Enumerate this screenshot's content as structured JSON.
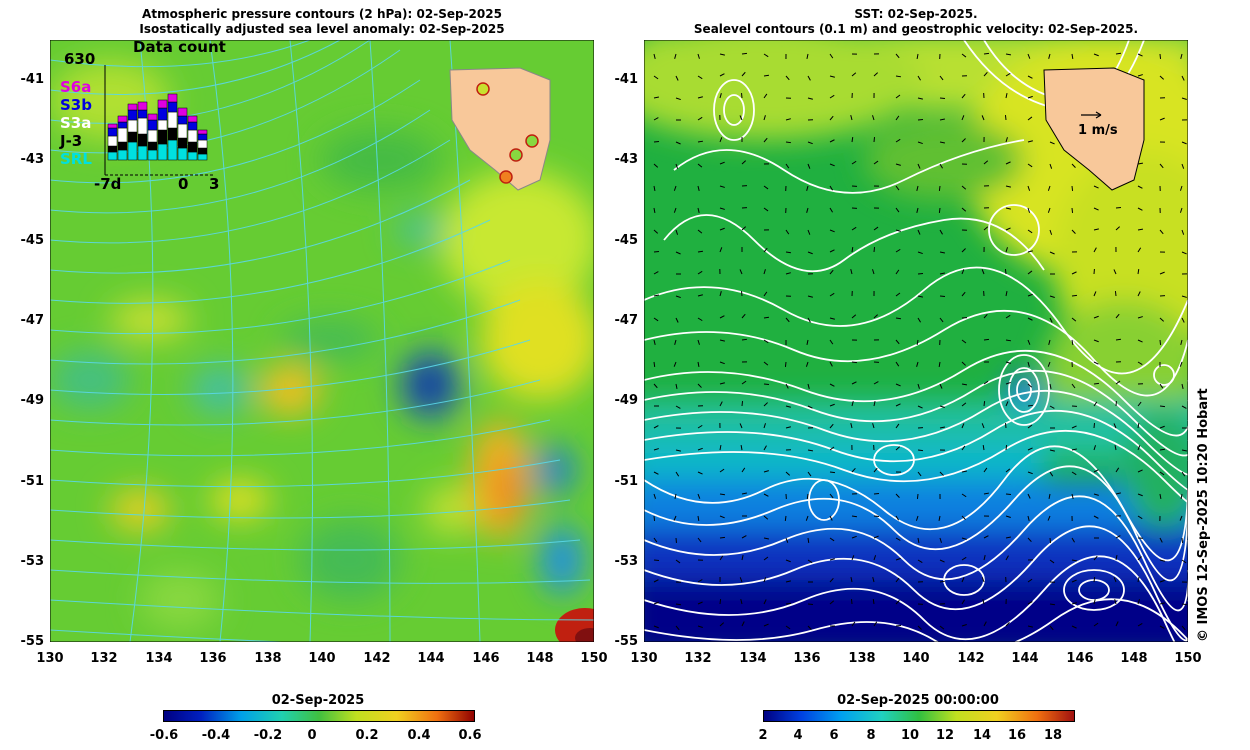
{
  "left_panel": {
    "title_line1": "Atmospheric pressure contours (2 hPa): 02-Sep-2025",
    "title_line2": "Isostatically adjusted sea level anomaly: 02-Sep-2025",
    "inset": {
      "title": "Data count",
      "max_label": "630",
      "legend": [
        {
          "label": "S6a",
          "color": "#e000e0"
        },
        {
          "label": "S3b",
          "color": "#0000e0"
        },
        {
          "label": "S3a",
          "color": "#ffffff"
        },
        {
          "label": "J-3",
          "color": "#000000"
        },
        {
          "label": "SRL",
          "color": "#00e0e0"
        }
      ],
      "x_labels": [
        "-7d",
        "0",
        "3"
      ]
    },
    "colorbar": {
      "title": "02-Sep-2025",
      "ticks": [
        "-0.6",
        "-0.4",
        "-0.2",
        "0",
        "0.2",
        "0.4",
        "0.6"
      ]
    }
  },
  "right_panel": {
    "title_line1": "SST: 02-Sep-2025.",
    "title_line2": "Sealevel contours (0.1 m) and geostrophic velocity: 02-Sep-2025.",
    "velocity_scale_label": "1 m/s",
    "colorbar": {
      "title": "02-Sep-2025 00:00:00",
      "ticks": [
        "2",
        "4",
        "6",
        "8",
        "10",
        "12",
        "14",
        "16",
        "18"
      ]
    },
    "copyright": "© IMOS 12-Sep-2025 10:20 Hobart"
  },
  "axes": {
    "y_ticks": [
      "-41",
      "-43",
      "-45",
      "-47",
      "-49",
      "-51",
      "-53",
      "-55"
    ],
    "x_ticks": [
      "130",
      "132",
      "134",
      "136",
      "138",
      "140",
      "142",
      "144",
      "146",
      "148",
      "150"
    ]
  }
}
